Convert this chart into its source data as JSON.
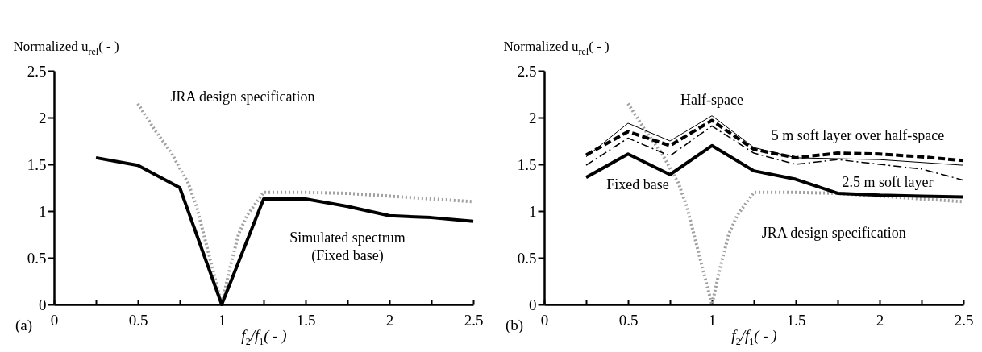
{
  "chart_data": [
    {
      "type": "line",
      "ylabel": "Normalized u$_{rel}$( - )",
      "xlabel": "f$_{2}$/f$_{1}$( - )",
      "xlim": [
        0,
        2.5
      ],
      "ylim": [
        0,
        2.5
      ],
      "xticks": [
        0,
        {
          "value": 0.25,
          "label": null
        },
        0.5,
        {
          "value": 0.75,
          "label": null
        },
        1,
        {
          "value": 1.25,
          "label": null
        },
        1.5,
        {
          "value": 1.75,
          "label": null
        },
        2,
        {
          "value": 2.25,
          "label": null
        },
        2.5
      ],
      "yticks": [
        0,
        0.5,
        1,
        1.5,
        2,
        2.5
      ],
      "grid": false,
      "legend": false,
      "annotations": [
        "(a)"
      ],
      "series": [
        {
          "name": "JRA design specification",
          "color": "#a0a0a0",
          "line_style": "dotted",
          "x": [
            0.5,
            0.6,
            0.7,
            0.8,
            0.85,
            0.9,
            0.95,
            1,
            1.05,
            1.1,
            1.15,
            1.25,
            1.5,
            1.75,
            2,
            2.25,
            2.5
          ],
          "values": [
            2.15,
            1.87,
            1.62,
            1.3,
            1.05,
            0.7,
            0.35,
            0,
            0.4,
            0.75,
            0.95,
            1.2,
            1.2,
            1.19,
            1.16,
            1.13,
            1.1
          ]
        },
        {
          "name": "Simulated spectrum\n(Fixed base)",
          "color": "#000000",
          "line_style": "solid",
          "x": [
            0.25,
            0.5,
            0.75,
            1,
            1.25,
            1.5,
            1.75,
            2,
            2.25,
            2.5
          ],
          "values": [
            1.57,
            1.49,
            1.25,
            0,
            1.13,
            1.13,
            1.05,
            0.95,
            0.93,
            0.89
          ]
        }
      ]
    },
    {
      "type": "line",
      "ylabel": "Normalized u$_{rel}$( - )",
      "xlabel": "f$_{2}$/f$_{1}$( - )",
      "xlim": [
        0,
        2.5
      ],
      "ylim": [
        0,
        2.5
      ],
      "xticks": [
        0,
        {
          "value": 0.25,
          "label": null
        },
        0.5,
        {
          "value": 0.75,
          "label": null
        },
        1,
        {
          "value": 1.25,
          "label": null
        },
        1.5,
        {
          "value": 1.75,
          "label": null
        },
        2,
        {
          "value": 2.25,
          "label": null
        },
        2.5
      ],
      "yticks": [
        0,
        0.5,
        1,
        1.5,
        2,
        2.5
      ],
      "grid": false,
      "legend": false,
      "annotations": [
        "(b)"
      ],
      "series": [
        {
          "name": "JRA design specification",
          "color": "#a0a0a0",
          "line_style": "dotted",
          "x": [
            0.5,
            0.6,
            0.7,
            0.8,
            0.85,
            0.9,
            0.95,
            1,
            1.05,
            1.1,
            1.15,
            1.25,
            1.5,
            1.75,
            2,
            2.25,
            2.5
          ],
          "values": [
            2.15,
            1.87,
            1.62,
            1.3,
            1.05,
            0.7,
            0.35,
            0,
            0.4,
            0.75,
            0.95,
            1.2,
            1.2,
            1.19,
            1.16,
            1.13,
            1.1
          ]
        },
        {
          "name": "Fixed base",
          "color": "#000000",
          "line_style": "solid",
          "x": [
            0.25,
            0.5,
            0.75,
            1,
            1.25,
            1.5,
            1.75,
            2,
            2.25,
            2.5
          ],
          "values": [
            1.36,
            1.61,
            1.39,
            1.7,
            1.43,
            1.34,
            1.19,
            1.17,
            1.16,
            1.15
          ]
        },
        {
          "name": "Half-space",
          "color": "#000000",
          "line_style": "solid",
          "x": [
            0.25,
            0.5,
            0.75,
            1,
            1.25,
            1.5,
            1.75,
            2,
            2.25,
            2.5
          ],
          "values": [
            1.58,
            1.94,
            1.75,
            2.02,
            1.68,
            1.57,
            1.56,
            1.55,
            1.52,
            1.49
          ]
        },
        {
          "name": "5 m soft layer over half-space",
          "color": "#000000",
          "line_style": "dashed",
          "x": [
            0.25,
            0.5,
            0.75,
            1,
            1.25,
            1.5,
            1.75,
            2,
            2.25,
            2.5
          ],
          "values": [
            1.6,
            1.85,
            1.7,
            1.97,
            1.66,
            1.57,
            1.62,
            1.61,
            1.58,
            1.54
          ]
        },
        {
          "name": "2.5 m soft layer",
          "color": "#000000",
          "line_style": "dashdot",
          "x": [
            0.25,
            0.5,
            0.75,
            1,
            1.25,
            1.5,
            1.75,
            2,
            2.25,
            2.5
          ],
          "values": [
            1.49,
            1.78,
            1.59,
            1.91,
            1.62,
            1.5,
            1.55,
            1.5,
            1.45,
            1.33
          ]
        }
      ]
    }
  ]
}
